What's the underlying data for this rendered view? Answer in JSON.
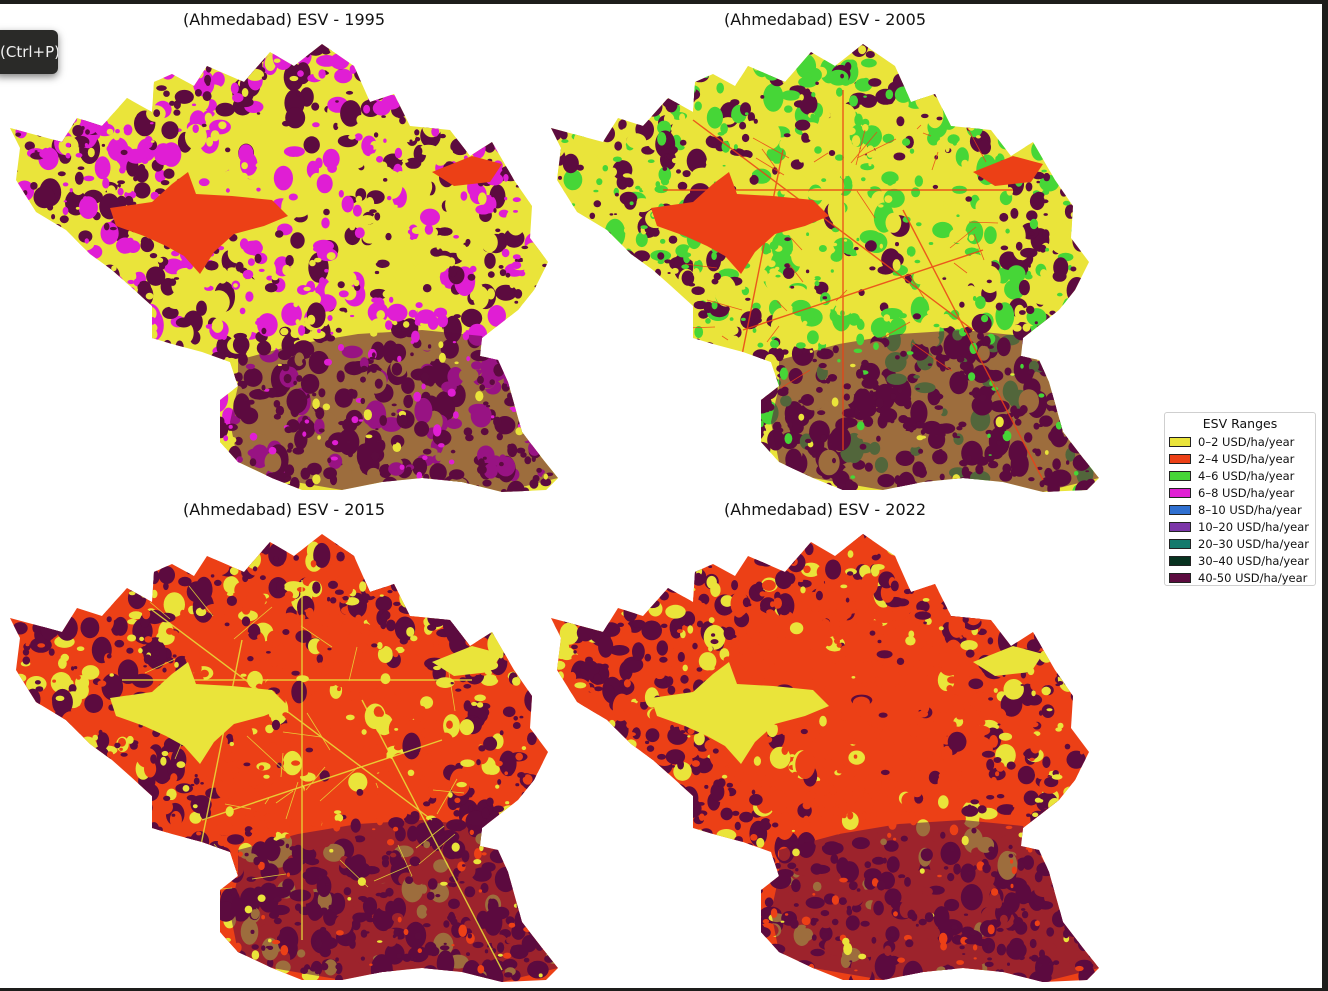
{
  "tooltip": {
    "text": "(Ctrl+P)"
  },
  "panels": [
    {
      "year": "1995",
      "title": "(Ahmedabad) ESV - 1995",
      "dominant": "yellow-magenta-maroon"
    },
    {
      "year": "2005",
      "title": "(Ahmedabad) ESV - 2005",
      "dominant": "yellow-green-maroon"
    },
    {
      "year": "2015",
      "title": "(Ahmedabad) ESV - 2015",
      "dominant": "orange-yellow-maroon"
    },
    {
      "year": "2022",
      "title": "(Ahmedabad) ESV - 2022",
      "dominant": "orange-maroon"
    }
  ],
  "legend": {
    "title": "ESV Ranges",
    "items": [
      {
        "label": "0–2 USD/ha/year",
        "color": "#eae43a"
      },
      {
        "label": "2–4 USD/ha/year",
        "color": "#ec4016"
      },
      {
        "label": "4–6 USD/ha/year",
        "color": "#46d637"
      },
      {
        "label": "6–8 USD/ha/year",
        "color": "#e01ed4"
      },
      {
        "label": "8–10 USD/ha/year",
        "color": "#2f6fd0"
      },
      {
        "label": "10–20 USD/ha/year",
        "color": "#7b35a8"
      },
      {
        "label": "20–30 USD/ha/year",
        "color": "#137a6c"
      },
      {
        "label": "30–40 USD/ha/year",
        "color": "#07321f"
      },
      {
        "label": "40-50 USD/ha/year",
        "color": "#5c0b3f"
      }
    ]
  }
}
